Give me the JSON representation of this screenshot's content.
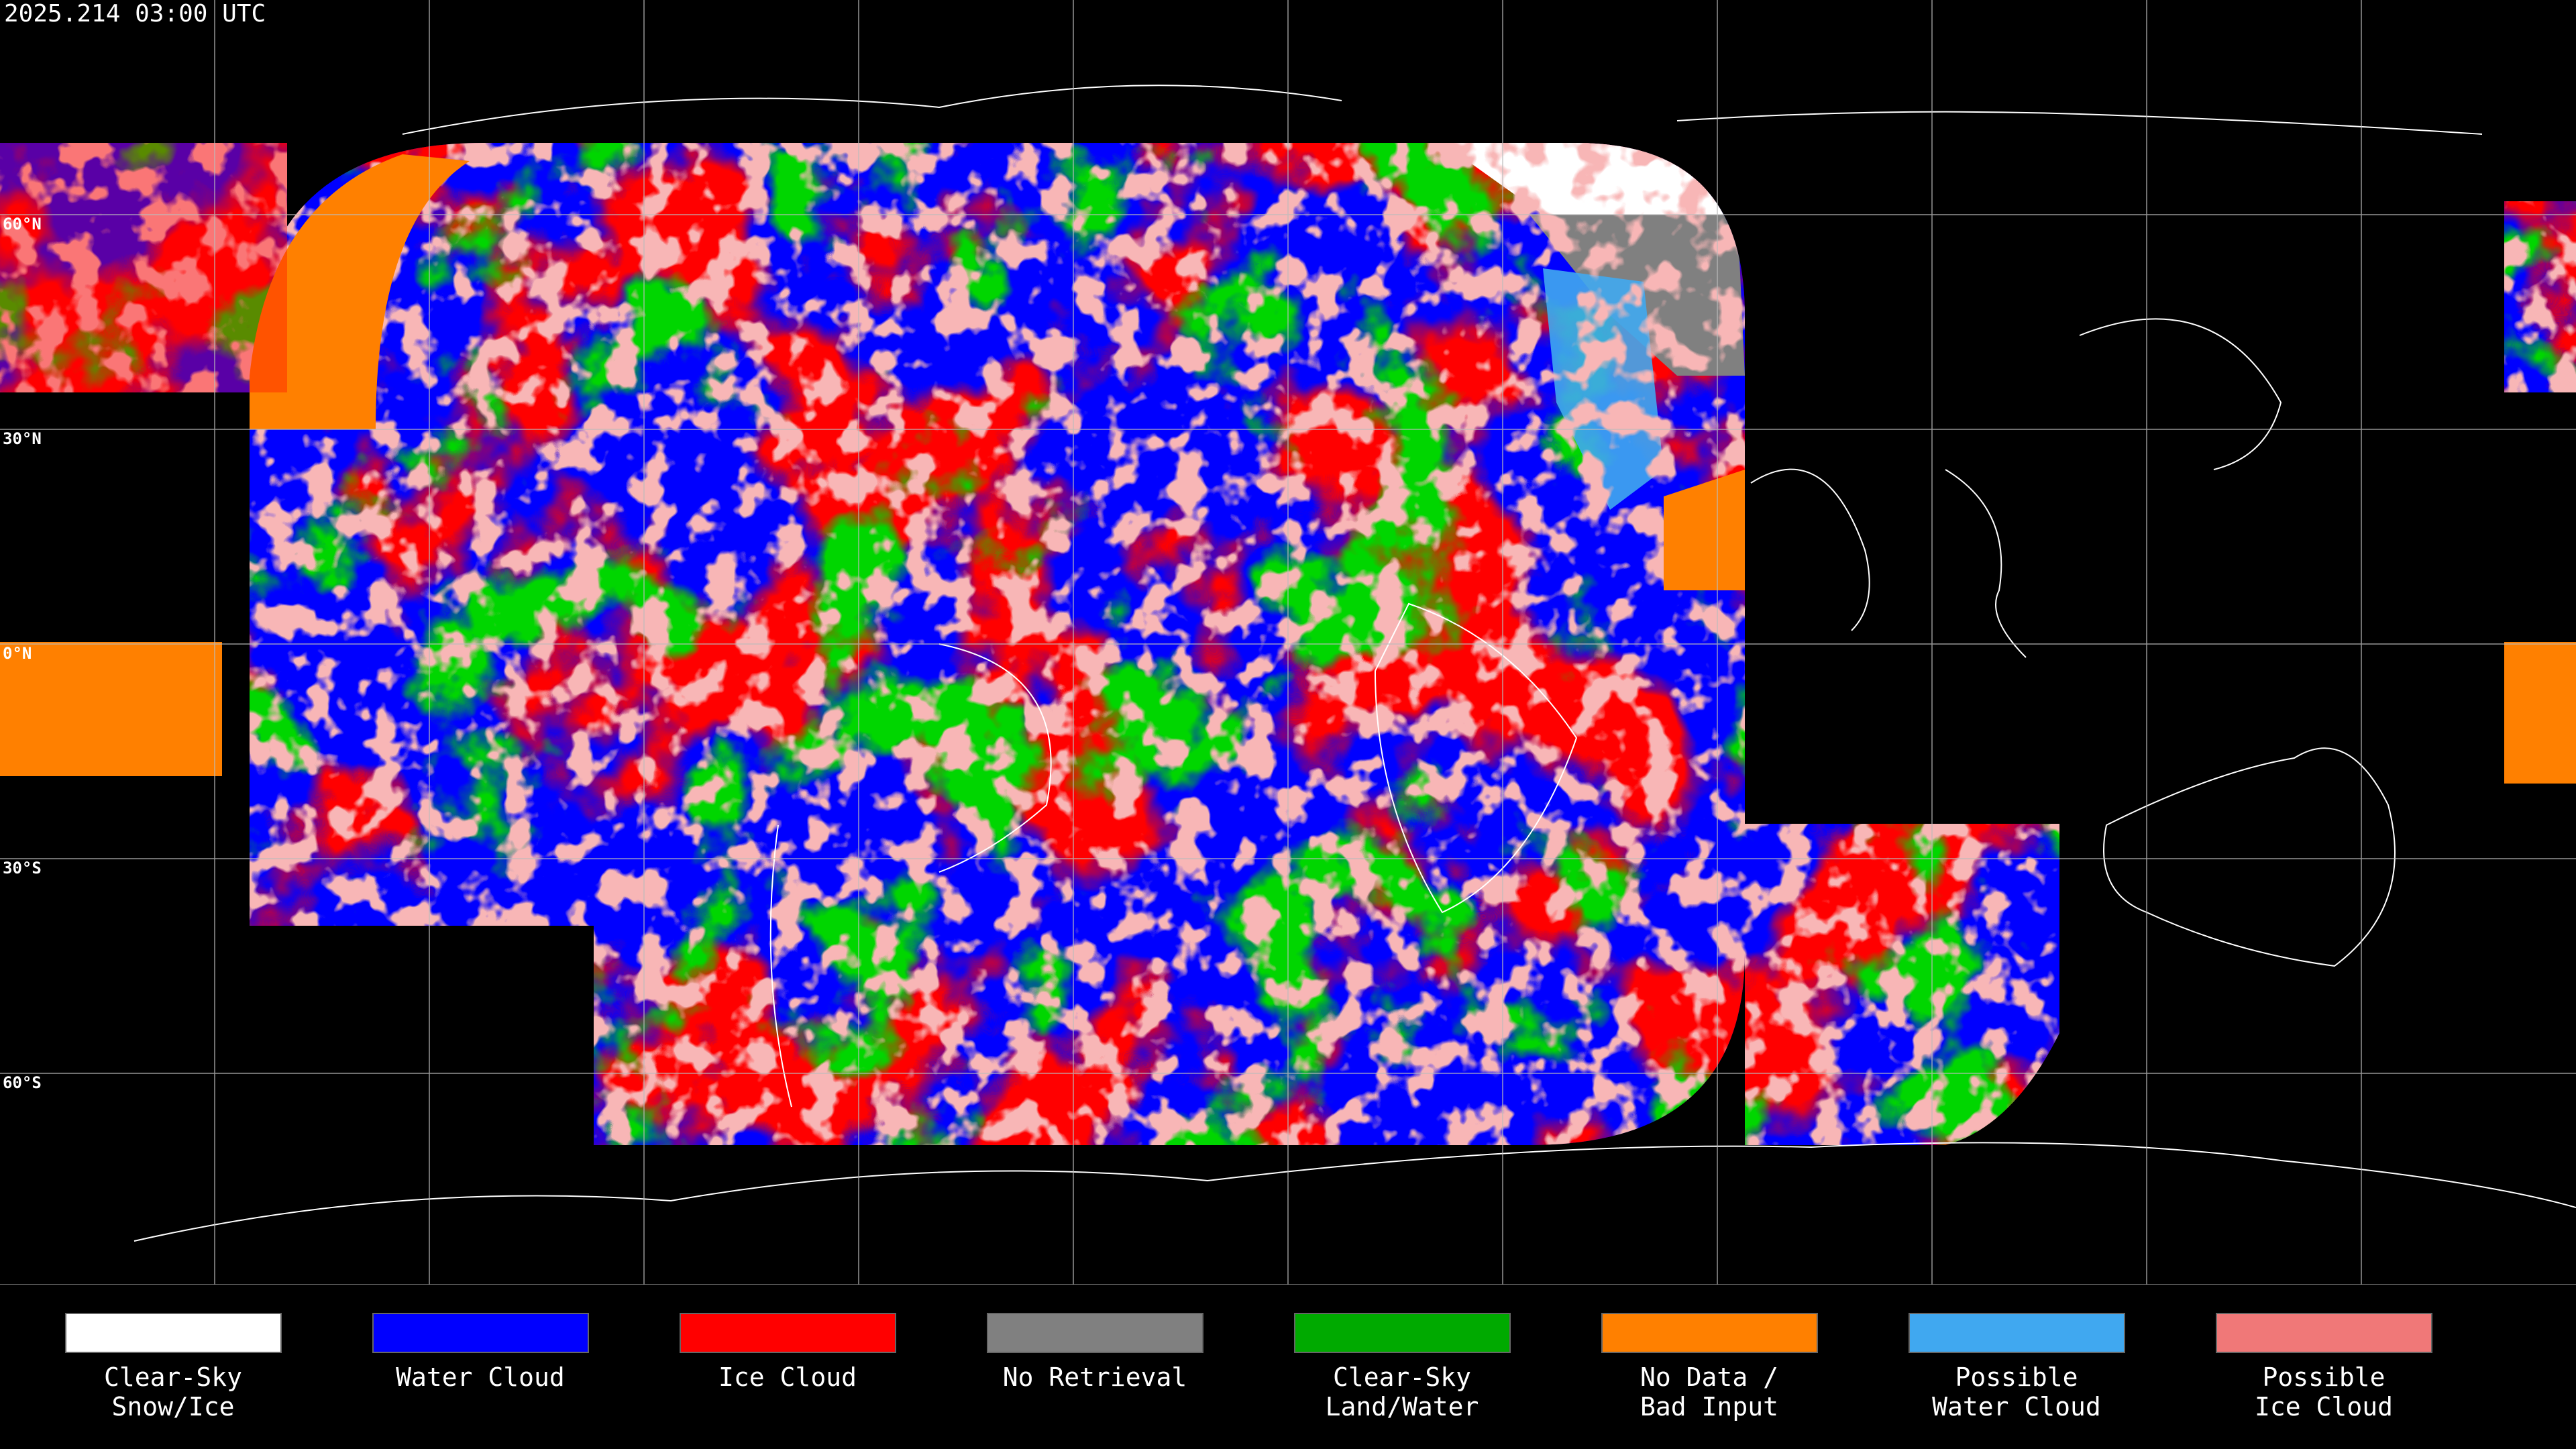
{
  "header": {
    "timestamp": "2025.214 03:00 UTC"
  },
  "map": {
    "latitude_labels": [
      "60°N",
      "30°N",
      "0°N",
      "30°S",
      "60°S"
    ]
  },
  "legend": {
    "items": [
      {
        "lines": [
          "Clear-Sky",
          "Snow/Ice"
        ],
        "color": "#ffffff"
      },
      {
        "lines": [
          "Water Cloud"
        ],
        "color": "#0000ff"
      },
      {
        "lines": [
          "Ice Cloud"
        ],
        "color": "#ff0000"
      },
      {
        "lines": [
          "No Retrieval"
        ],
        "color": "#808080"
      },
      {
        "lines": [
          "Clear-Sky",
          "Land/Water"
        ],
        "color": "#00aa00"
      },
      {
        "lines": [
          "No Data /",
          "Bad Input"
        ],
        "color": "#ff8000"
      },
      {
        "lines": [
          "Possible",
          "Water Cloud"
        ],
        "color": "#40a8f0"
      },
      {
        "lines": [
          "Possible",
          "Ice Cloud"
        ],
        "color": "#f07878"
      }
    ]
  }
}
